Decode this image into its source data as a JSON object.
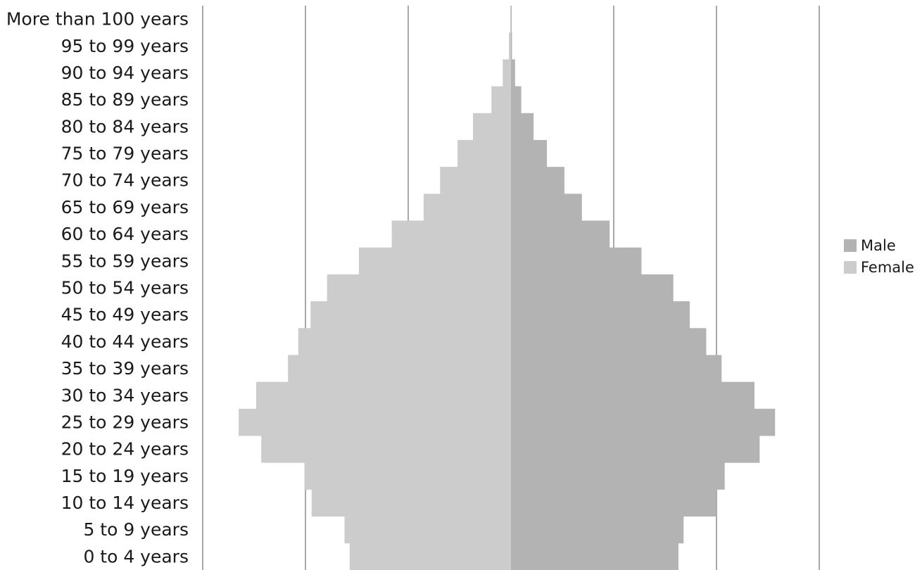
{
  "chart_data": {
    "type": "bar",
    "orientation": "horizontal",
    "layout": "population-pyramid",
    "categories": [
      "0 to 4 years",
      "5 to 9 years",
      "10 to 14 years",
      "15 to 19 years",
      "20 to 24 years",
      "25 to 29 years",
      "30 to 34 years",
      "35 to 39 years",
      "40 to 44 years",
      "45 to 49 years",
      "50 to 54 years",
      "55 to 59 years",
      "60 to 64 years",
      "65 to 69 years",
      "70 to 74 years",
      "75 to 79 years",
      "80 to 84 years",
      "85 to 89 years",
      "90 to 94 years",
      "95 to 99 years",
      "More than 100 years"
    ],
    "series": [
      {
        "name": "Male",
        "color": "#b3b3b3",
        "side": "right",
        "values": [
          163,
          168,
          200,
          208,
          242,
          257,
          237,
          205,
          190,
          174,
          158,
          127,
          96,
          69,
          52,
          35,
          22,
          10,
          4,
          1,
          0.5
        ]
      },
      {
        "name": "Female",
        "color": "#cccccc",
        "side": "left",
        "values": [
          157,
          162,
          194,
          201,
          243,
          265,
          248,
          217,
          207,
          195,
          179,
          148,
          116,
          85,
          69,
          52,
          37,
          19,
          8,
          2,
          0.5
        ]
      }
    ],
    "xlim": [
      -300,
      300
    ],
    "grid": true,
    "grid_step": 100,
    "legend": "right",
    "title": "",
    "xlabel": "",
    "ylabel": ""
  }
}
